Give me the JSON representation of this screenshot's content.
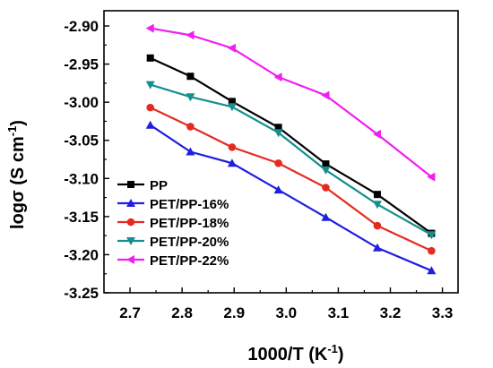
{
  "chart_data": {
    "type": "line",
    "title": "",
    "xlabel": "1000/T (K",
    "xlabel_sup": "-1",
    "xlabel_end": ")",
    "ylabel": "logσ (S cm",
    "ylabel_sup": "-1",
    "ylabel_end": ")",
    "xlim": [
      2.65,
      3.33
    ],
    "ylim": [
      -3.25,
      -2.88
    ],
    "xticks": [
      2.7,
      2.8,
      2.9,
      3.0,
      3.1,
      3.2,
      3.3
    ],
    "xtick_labels": [
      "2.7",
      "2.8",
      "2.9",
      "3.0",
      "3.1",
      "3.2",
      "3.3"
    ],
    "yticks": [
      -3.25,
      -3.2,
      -3.15,
      -3.1,
      -3.05,
      -3.0,
      -2.95,
      -2.9
    ],
    "ytick_labels": [
      "-3.25",
      "-3.20",
      "-3.15",
      "-3.10",
      "-3.05",
      "-3.00",
      "-2.95",
      "-2.90"
    ],
    "grid": false,
    "legend_position": "bottom-left",
    "x": [
      2.739,
      2.816,
      2.896,
      2.985,
      3.076,
      3.175,
      3.279
    ],
    "series": [
      {
        "name": "PP",
        "color": "#000000",
        "marker": "square",
        "values": [
          -2.942,
          -2.966,
          -2.999,
          -3.033,
          -3.081,
          -3.121,
          -3.172
        ]
      },
      {
        "name": "PET/PP-16%",
        "color": "#1f1fdf",
        "marker": "triangle-up",
        "values": [
          -3.03,
          -3.065,
          -3.08,
          -3.115,
          -3.151,
          -3.191,
          -3.221
        ]
      },
      {
        "name": "PET/PP-18%",
        "color": "#e52b1f",
        "marker": "circle",
        "values": [
          -3.007,
          -3.032,
          -3.059,
          -3.08,
          -3.112,
          -3.162,
          -3.195
        ]
      },
      {
        "name": "PET/PP-20%",
        "color": "#138f8f",
        "marker": "triangle-down",
        "values": [
          -2.977,
          -2.993,
          -3.006,
          -3.04,
          -3.089,
          -3.134,
          -3.174
        ]
      },
      {
        "name": "PET/PP-22%",
        "color": "#f01ff0",
        "marker": "triangle-left",
        "values": [
          -2.903,
          -2.912,
          -2.929,
          -2.967,
          -2.991,
          -3.042,
          -3.098
        ]
      }
    ]
  }
}
